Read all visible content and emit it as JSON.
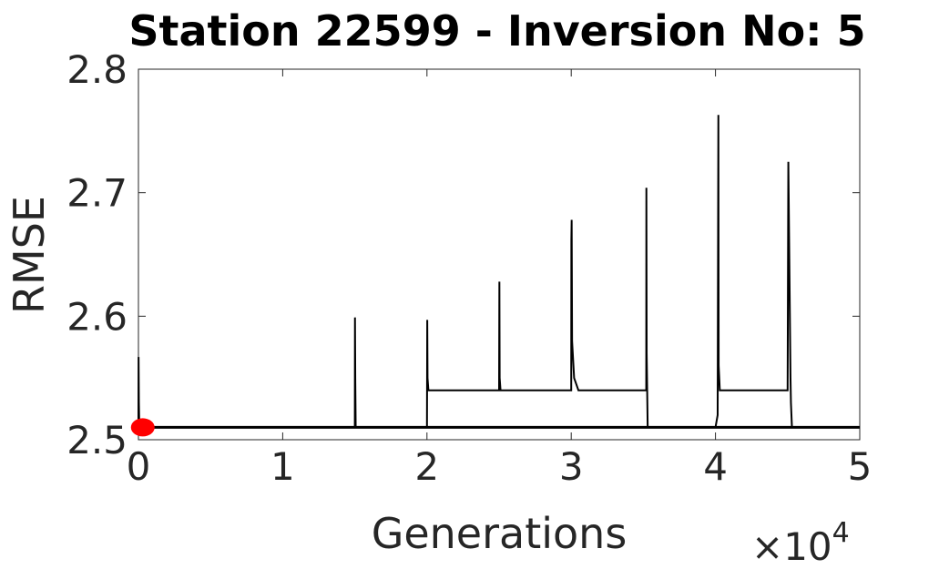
{
  "chart_data": {
    "type": "line",
    "title": "Station 22599 - Inversion No: 5",
    "xlabel": "Generations",
    "ylabel": "RMSE",
    "x_multiplier_label": "×10",
    "x_multiplier_exponent": "4",
    "xlim": [
      0,
      5
    ],
    "ylim": [
      2.5,
      2.8
    ],
    "xticks": [
      0,
      1,
      2,
      3,
      4,
      5
    ],
    "xtick_labels": [
      "0",
      "1",
      "2",
      "3",
      "4",
      "5"
    ],
    "yticks": [
      2.5,
      2.6,
      2.7,
      2.8
    ],
    "ytick_labels": [
      "2.5",
      "2.6",
      "2.7",
      "2.8"
    ],
    "grid": false,
    "series": [
      {
        "color": "#000000",
        "x": [
          0,
          0.001,
          0.003,
          0.006,
          1.5,
          1.501,
          1.503,
          1.506,
          2.0,
          2.002,
          2.004,
          2.01,
          2.5,
          2.502,
          2.504,
          2.51,
          3.0,
          3.001,
          3.003,
          3.006,
          3.02,
          3.05,
          3.52,
          3.521,
          3.523,
          3.53,
          4.0,
          4.015,
          4.02,
          4.022,
          4.03,
          4.5,
          4.505,
          4.52,
          4.523,
          4.53,
          5.0
        ],
        "y": [
          2.51,
          2.567,
          2.53,
          2.51,
          2.51,
          2.599,
          2.55,
          2.51,
          2.51,
          2.597,
          2.55,
          2.54,
          2.54,
          2.628,
          2.55,
          2.54,
          2.54,
          2.662,
          2.678,
          2.58,
          2.55,
          2.54,
          2.54,
          2.704,
          2.57,
          2.51,
          2.51,
          2.52,
          2.763,
          2.56,
          2.54,
          2.54,
          2.725,
          2.55,
          2.53,
          2.51,
          2.51
        ]
      },
      {
        "color": "#000000",
        "x": [
          0,
          5.0
        ],
        "y": [
          2.51,
          2.51
        ]
      }
    ],
    "marker": {
      "x": 0.03,
      "y": 2.51,
      "color": "#ff0000"
    }
  }
}
